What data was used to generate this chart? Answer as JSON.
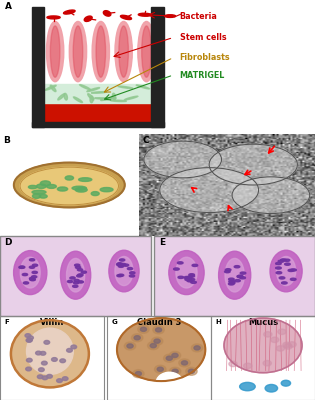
{
  "background_color": "#ffffff",
  "fig_width": 3.15,
  "fig_height": 4.0,
  "dpi": 100,
  "panel_A": {
    "well_color": "#222222",
    "medium_color": "#cc1100",
    "matrigel_bg": "#d4edda",
    "villi_outer": "#f0a0a8",
    "villi_inner": "#e05060",
    "bacteria_color": "#cc0000",
    "legend": [
      {
        "text": "Bacteria",
        "color": "#cc0000"
      },
      {
        "text": "Stem cells",
        "color": "#cc0000"
      },
      {
        "text": "Fibroblasts",
        "color": "#b8860b"
      },
      {
        "text": "MATRIGEL",
        "color": "#228B22"
      }
    ]
  },
  "panel_B": {
    "dish_outer": "#c8a050",
    "dish_inner": "#e8c878",
    "organoid_color": "#5aab61"
  },
  "panel_C": {
    "bg": "#b0b0b0",
    "arrow_color": "#dd0000"
  },
  "panel_DE": {
    "bg": "#f5e8f5",
    "villus_color": "#c060c0",
    "nucleus_color": "#7030a0",
    "border_color": "#888888"
  },
  "panel_F": {
    "label": "Villin",
    "bg": "#f0e8e0",
    "tissue_color": "#d4a878",
    "nucleus_color": "#907898",
    "brown_stain": "#c07838"
  },
  "panel_G": {
    "label": "Claudin 3",
    "bg": "#e8e0d8",
    "tissue_color": "#c89868",
    "nucleus_color": "#806870",
    "brown_stain": "#b06828"
  },
  "panel_H": {
    "label": "Mucus",
    "bg": "#f0e8ec",
    "tissue_color": "#e0a0b0",
    "fiber_color": "#cc6080",
    "blue_color": "#3399cc"
  }
}
